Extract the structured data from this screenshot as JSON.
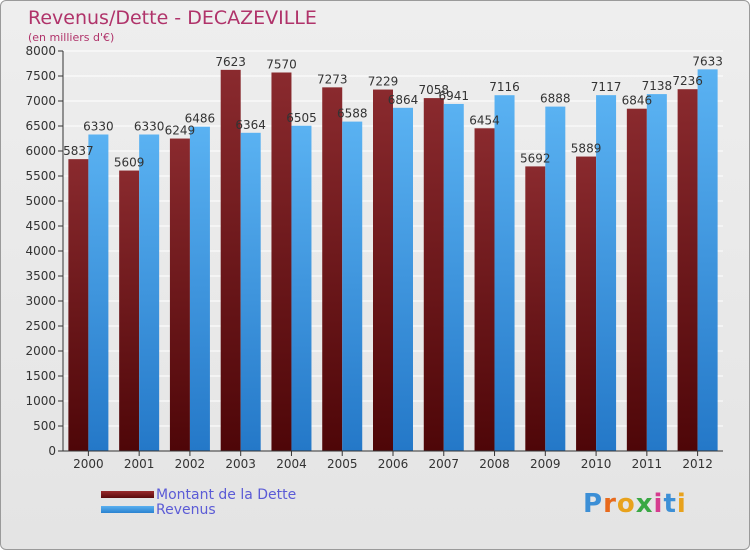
{
  "title": "Revenus/Dette - DECAZEVILLE",
  "subtitle": "(en milliers d'€)",
  "colors": {
    "dette": "#7a2022",
    "revenus": "#3a9be6",
    "axis": "#333333",
    "grid": "#ffffff",
    "title": "#b0336a"
  },
  "chart_data": {
    "type": "bar",
    "categories": [
      "2000",
      "2001",
      "2002",
      "2003",
      "2004",
      "2005",
      "2006",
      "2007",
      "2008",
      "2009",
      "2010",
      "2011",
      "2012"
    ],
    "series": [
      {
        "name": "Montant de la Dette",
        "values": [
          5837,
          5609,
          6249,
          7623,
          7570,
          7273,
          7229,
          7058,
          6454,
          5692,
          5889,
          6846,
          7236
        ]
      },
      {
        "name": "Revenus",
        "values": [
          6330,
          6330,
          6486,
          6364,
          6505,
          6588,
          6864,
          6941,
          7116,
          6888,
          7117,
          7138,
          7633
        ]
      }
    ],
    "ylim": [
      0,
      8000
    ],
    "yticks": [
      0,
      500,
      1000,
      1500,
      2000,
      2500,
      3000,
      3500,
      4000,
      4500,
      5000,
      5500,
      6000,
      6500,
      7000,
      7500,
      8000
    ],
    "grid": true,
    "legend": "bottom-left"
  },
  "legend": {
    "items": [
      "Montant de la Dette",
      "Revenus"
    ]
  },
  "logo": {
    "letters": [
      "P",
      "r",
      "o",
      "x",
      "i",
      "t",
      "i"
    ],
    "colors": [
      "#3c8fd6",
      "#e86a1c",
      "#e8a21c",
      "#3aa845",
      "#d63c8f",
      "#3c8fd6",
      "#e8a21c"
    ]
  }
}
